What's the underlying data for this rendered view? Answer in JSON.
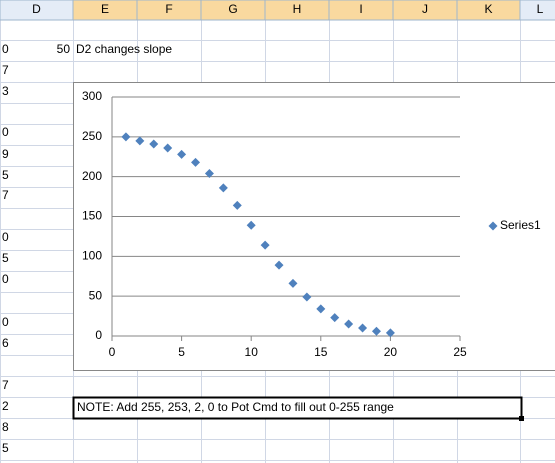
{
  "sheet": {
    "columns": [
      "D",
      "E",
      "F",
      "G",
      "H",
      "I",
      "J",
      "K",
      "L"
    ],
    "rows": [
      "0",
      "7",
      "3",
      "0",
      "9",
      "5",
      "7",
      "0",
      "5",
      "0",
      "0",
      "6",
      "7",
      "2",
      "8",
      "5"
    ],
    "cell_d": "50",
    "cell_e": "D2 changes slope",
    "note": "NOTE: Add 255, 253, 2, 0 to Pot Cmd to fill out 0-255 range"
  },
  "chart_data": {
    "type": "scatter",
    "series": [
      {
        "name": "Series1",
        "color": "#4f81bd",
        "x": [
          1,
          2,
          3,
          4,
          5,
          6,
          7,
          8,
          9,
          10,
          11,
          12,
          13,
          14,
          15,
          16,
          17,
          18,
          19,
          20
        ],
        "values": [
          250,
          245,
          241,
          236,
          228,
          218,
          204,
          186,
          164,
          139,
          114,
          89,
          66,
          49,
          34,
          23,
          15,
          10,
          6,
          4
        ]
      }
    ],
    "xlim": [
      0,
      25
    ],
    "xticks": [
      0,
      5,
      10,
      15,
      20,
      25
    ],
    "ylim": [
      0,
      300
    ],
    "yticks": [
      0,
      50,
      100,
      150,
      200,
      250,
      300
    ],
    "grid": true,
    "legend": "right"
  }
}
